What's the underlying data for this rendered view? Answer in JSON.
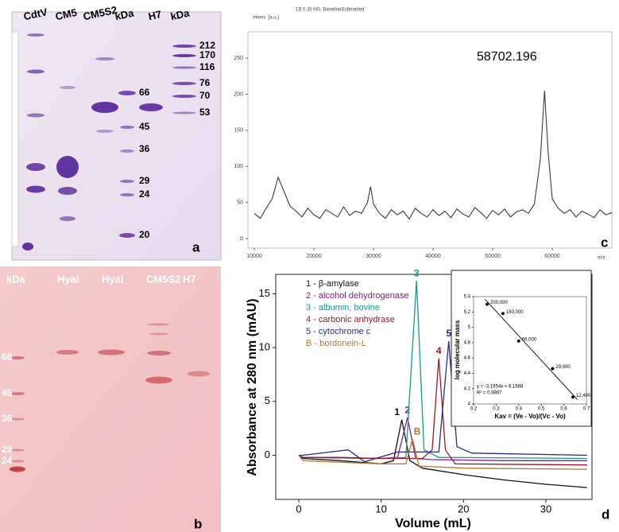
{
  "gels": [
    {
      "panel": "a",
      "labels": [
        "CdtV",
        "CM5",
        "CM5S2",
        "kDa",
        "H7",
        "kDa"
      ],
      "markers_left": [
        "66",
        "45",
        "36",
        "29",
        "24",
        "20"
      ],
      "markers_right": [
        "212",
        "170",
        "116",
        "76",
        "70",
        "53"
      ]
    },
    {
      "panel": "b",
      "labels": [
        "kDa",
        "Hyal",
        "Hyal",
        "CM5S2",
        "H7"
      ],
      "markers_left": [
        "66",
        "45",
        "36",
        "29",
        "24"
      ]
    }
  ],
  "chart_data": [
    {
      "type": "line",
      "panel": "c",
      "title": "1B 0:J3 MS, BaselineSubtracted",
      "ylabel": "Intens. [a.u.]",
      "xlabel": "m/z",
      "annotation": "58702.196",
      "x": [
        10000,
        11000,
        12000,
        13000,
        14000,
        15000,
        16000,
        17000,
        18000,
        19000,
        20000,
        21000,
        22000,
        23000,
        24000,
        25000,
        26000,
        27000,
        28000,
        29000,
        29500,
        30000,
        31000,
        32000,
        33000,
        34000,
        35000,
        36000,
        37000,
        38000,
        39000,
        40000,
        41000,
        42000,
        43000,
        44000,
        45000,
        46000,
        47000,
        48000,
        49000,
        50000,
        51000,
        52000,
        53000,
        54000,
        55000,
        56000,
        57000,
        58000,
        58702.196,
        59300,
        60000,
        61000,
        62000,
        63000,
        64000,
        65000,
        66000,
        67000,
        68000,
        69000,
        70000
      ],
      "series": [
        {
          "color": "#3a3a3a",
          "values": [
            35,
            28,
            42,
            55,
            85,
            65,
            45,
            38,
            30,
            42,
            33,
            28,
            40,
            35,
            30,
            44,
            32,
            38,
            35,
            50,
            72,
            48,
            35,
            28,
            40,
            33,
            38,
            27,
            42,
            35,
            30,
            40,
            32,
            38,
            29,
            41,
            34,
            30,
            43,
            36,
            28,
            39,
            33,
            41,
            30,
            37,
            40,
            35,
            48,
            110,
            205,
            120,
            55,
            42,
            35,
            40,
            30,
            38,
            34,
            29,
            40,
            33,
            36
          ]
        }
      ],
      "xlim": [
        10000,
        70000
      ],
      "ylim": [
        -11,
        281
      ],
      "xticks": [
        10000,
        20000,
        30000,
        40000,
        50000,
        60000
      ],
      "yticks": [
        0,
        50,
        100,
        150,
        200,
        250
      ]
    },
    {
      "type": "line",
      "panel": "d",
      "xlabel": "Volume (mL)",
      "ylabel": "Absorbance at 280 nm (mAU)",
      "series": [
        {
          "name": "1 - β-amylase",
          "peak_label": "1",
          "color": "#111111",
          "x": [
            0,
            0.5,
            5,
            10,
            11.5,
            12.5,
            13.5,
            15,
            20,
            25,
            30,
            35
          ],
          "values": [
            0,
            -0.3,
            -0.5,
            -0.8,
            -0.5,
            3.3,
            -0.5,
            -1.2,
            -1.8,
            -2.3,
            -2.7,
            -3
          ]
        },
        {
          "name": "2 - alcohol dehydrogenase",
          "peak_label": "2",
          "color": "#8a1a8a",
          "x": [
            0,
            0.5,
            5,
            10,
            12,
            13.2,
            14.2,
            16,
            25,
            35
          ],
          "values": [
            0,
            -0.2,
            -0.2,
            -0.3,
            -0.2,
            3.5,
            -0.3,
            -0.4,
            -0.5,
            -0.5
          ]
        },
        {
          "name": "3 - albumin, bovine",
          "peak_label": "3",
          "color": "#179a8a",
          "x": [
            0,
            0.5,
            10,
            13,
            14.3,
            15.2,
            17,
            35
          ],
          "values": [
            0,
            -0.2,
            -0.3,
            -0.2,
            16.2,
            0.5,
            -0.2,
            -0.3
          ]
        },
        {
          "name": "4 - carbonic anhydrase",
          "peak_label": "4",
          "color": "#9a1a2a",
          "x": [
            0,
            0.5,
            10,
            15,
            16.2,
            17,
            17.8,
            19,
            35
          ],
          "values": [
            0,
            -0.2,
            -0.3,
            -0.3,
            0.5,
            9,
            0.5,
            -0.8,
            -0.9
          ]
        },
        {
          "name": "5 - cytochrome c",
          "peak_label": "5",
          "color": "#2a2a8a",
          "x": [
            0,
            0.5,
            6,
            8,
            12,
            17,
            18.2,
            19.2,
            21,
            35
          ],
          "values": [
            0,
            0,
            0.5,
            -0.6,
            0.3,
            0.3,
            10.6,
            0.8,
            0.2,
            0
          ]
        },
        {
          "name": "B - bordonein-L",
          "peak_label": "B",
          "color": "#b07a30",
          "x": [
            0,
            0.5,
            10,
            13,
            13.8,
            14.6,
            20,
            35
          ],
          "values": [
            0,
            -0.5,
            -0.8,
            -0.8,
            1.5,
            -1,
            -1.2,
            -1.3
          ]
        }
      ],
      "xlim": [
        -2.8,
        35.6
      ],
      "ylim": [
        -4.1,
        16.8
      ],
      "xticks": [
        0,
        10,
        20,
        30
      ],
      "yticks": [
        0,
        5,
        10,
        15
      ]
    },
    {
      "type": "scatter",
      "xlabel": "Kav = (Ve - Vo)/(Vc - Vo)",
      "ylabel": "log molecular mass",
      "equation": "y = -3,1954x + 6,1668",
      "r2": "R² = 0,9867",
      "x": [
        0.26,
        0.33,
        0.4,
        0.55,
        0.64
      ],
      "values": [
        5.3,
        5.18,
        4.82,
        4.46,
        4.09
      ],
      "point_labels": [
        "200,000",
        "150,000",
        "66,000",
        "29,000",
        "12,400"
      ],
      "trendline": {
        "x": [
          0.25,
          0.66
        ],
        "values": [
          5.368,
          4.058
        ]
      },
      "xlim": [
        0.2,
        0.7
      ],
      "ylim": [
        4,
        5.4
      ],
      "xticks": [
        0.2,
        0.3,
        0.4,
        0.5,
        0.6,
        0.7
      ],
      "yticks": [
        4,
        4.2,
        4.4,
        4.6,
        4.8,
        5,
        5.2,
        5.4
      ]
    }
  ]
}
